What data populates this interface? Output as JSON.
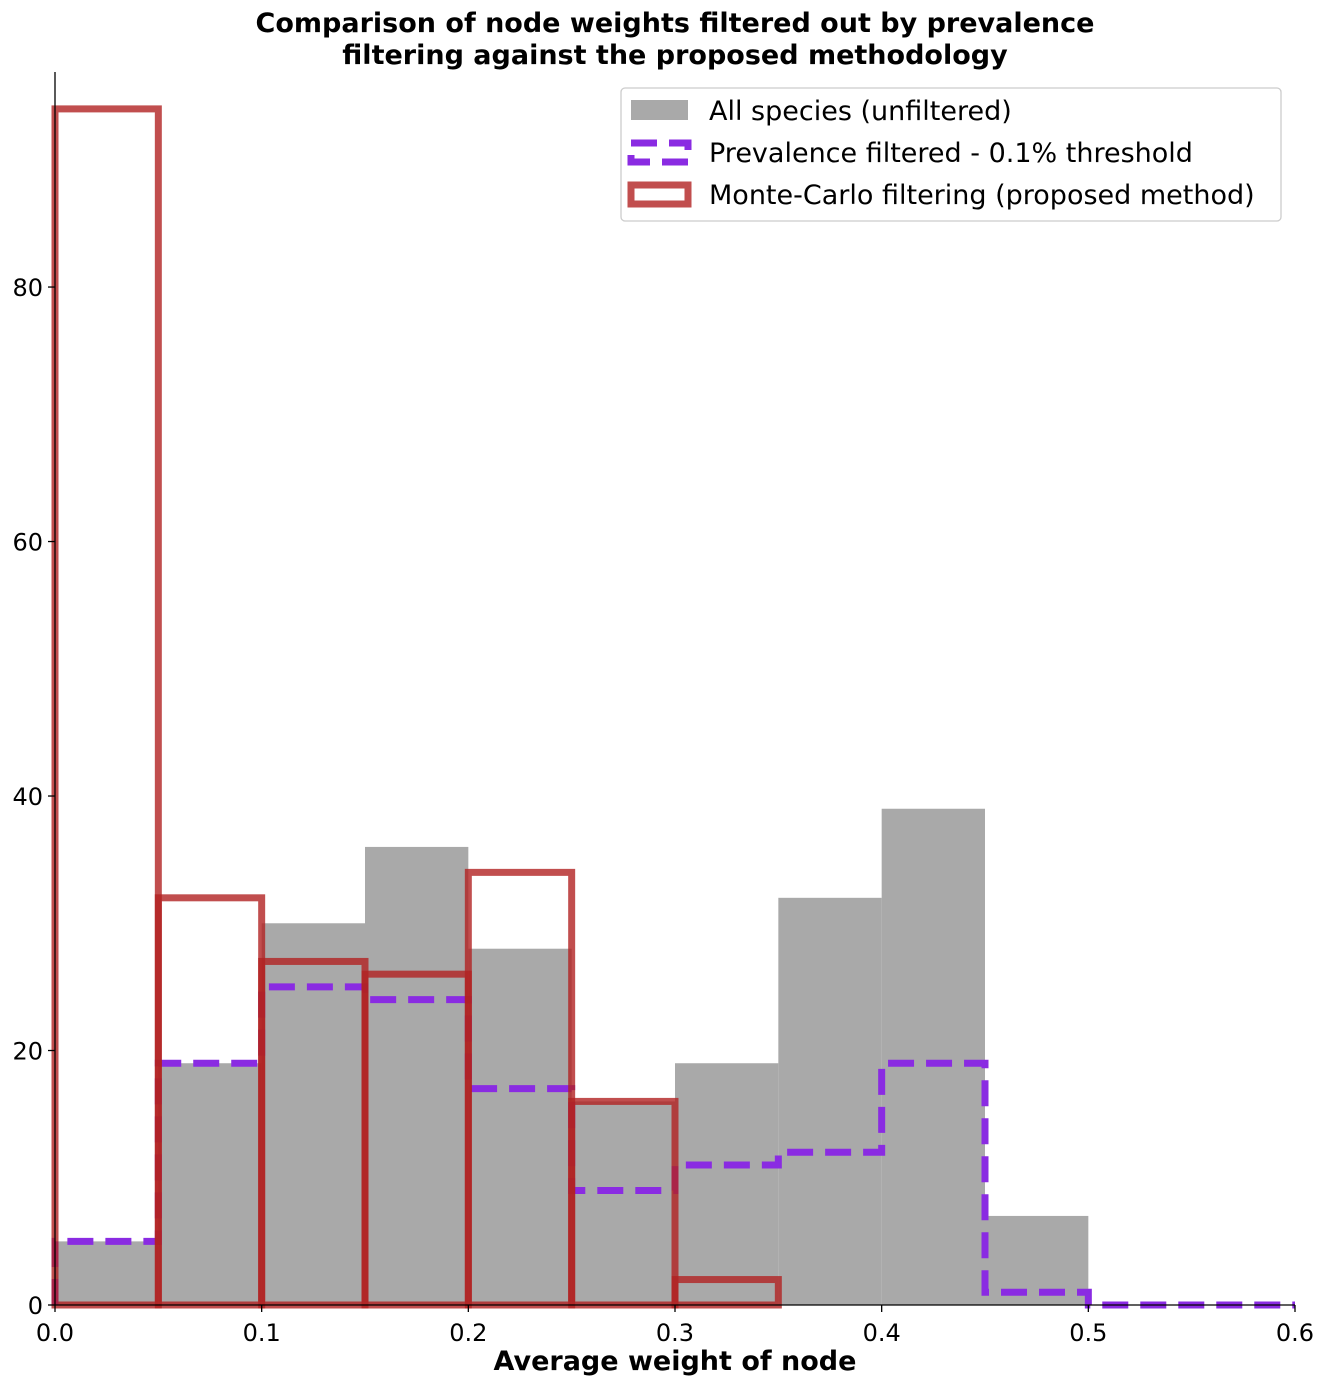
{
  "chart_data": {
    "type": "bar",
    "title_lines": [
      "Comparison of node weights filtered out by prevalence",
      "filtering against the proposed methodology"
    ],
    "xlabel": "Average weight of node",
    "ylabel": "",
    "xlim": [
      0.0,
      0.6
    ],
    "ylim": [
      0,
      94
    ],
    "xticks": [
      "0.0",
      "0.1",
      "0.2",
      "0.3",
      "0.4",
      "0.5",
      "0.6"
    ],
    "yticks": [
      "0",
      "20",
      "40",
      "60",
      "80"
    ],
    "bin_edges": [
      0.0,
      0.05,
      0.1,
      0.15,
      0.2,
      0.25,
      0.3,
      0.35,
      0.4,
      0.45,
      0.5,
      0.55,
      0.6
    ],
    "legend_position": "top-right",
    "grid": false,
    "series": [
      {
        "name": "All species (unfiltered)",
        "style": "filled",
        "color": "#a9a9a9",
        "values": [
          5,
          19,
          30,
          36,
          28,
          16,
          19,
          32,
          39,
          7,
          0,
          0
        ]
      },
      {
        "name": "Prevalence filtered - 0.1% threshold",
        "style": "step-dashed",
        "color": "#8a2be2",
        "values": [
          5,
          19,
          25,
          24,
          17,
          9,
          11,
          12,
          19,
          1,
          0,
          0
        ]
      },
      {
        "name": "Monte-Carlo filtering (proposed method)",
        "style": "bar-outline",
        "color": "#b22222",
        "values": [
          94,
          32,
          27,
          26,
          34,
          16,
          2,
          0,
          0,
          0,
          0,
          0
        ]
      }
    ]
  }
}
